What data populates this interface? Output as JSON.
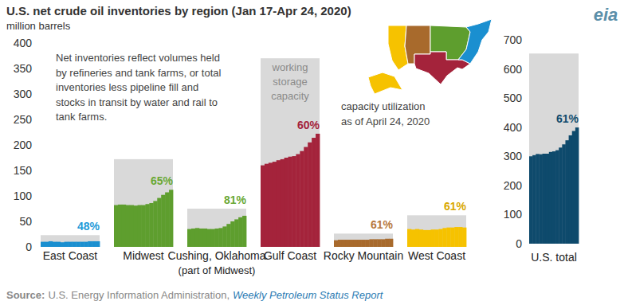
{
  "chart_data": [
    {
      "type": "bar",
      "title": "U.S. net crude oil inventories by region (Jan 17-Apr 24, 2020)",
      "y_label": "million barrels",
      "logo": "eia",
      "note_lines": [
        "Net inventories reflect volumes held",
        "by refineries and tank farms, or total",
        "inventories less pipeline fill and",
        "stocks in transit by water and rail to",
        "tank farms."
      ],
      "capacity_label_lines": [
        "working",
        "storage",
        "capacity"
      ],
      "utilization_note_lines": [
        "capacity utilization",
        "as of April 24, 2020"
      ],
      "source_prefix": "Source:",
      "source": "U.S. Energy Information Administration,",
      "source_report": "Weekly Petroleum Status Report",
      "categories": [
        "East Coast",
        "Midwest",
        "Cushing, Oklahoma",
        "Gulf Coast",
        "Rocky Mountain",
        "West Coast"
      ],
      "category_notes": [
        null,
        null,
        "(part of Midwest)",
        null,
        null,
        null
      ],
      "colors": [
        "#1a8fd0",
        "#5e9e2e",
        "#5e9e2e",
        "#a4233b",
        "#a86a2c",
        "#f6c200"
      ],
      "label_colors": [
        "#1f9ad8",
        "#69a833",
        "#69a833",
        "#a4233b",
        "#b8783a",
        "#d9a800"
      ],
      "values": [
        [
          10,
          10,
          11,
          10,
          10,
          9,
          10,
          10,
          10,
          10,
          10,
          10,
          11,
          11,
          11
        ],
        [
          82,
          83,
          83,
          82,
          82,
          81,
          82,
          82,
          84,
          86,
          90,
          96,
          102,
          107,
          112
        ],
        [
          35,
          36,
          37,
          36,
          36,
          35,
          35,
          36,
          37,
          40,
          45,
          50,
          54,
          58,
          61
        ],
        [
          160,
          163,
          165,
          167,
          170,
          172,
          175,
          177,
          178,
          182,
          188,
          196,
          205,
          214,
          222
        ],
        [
          13,
          14,
          14,
          14,
          14,
          14,
          14,
          14,
          14,
          15,
          15,
          15,
          15,
          16,
          16
        ],
        [
          35,
          34,
          35,
          34,
          33,
          33,
          34,
          34,
          35,
          37,
          38,
          38,
          39,
          39,
          38
        ]
      ],
      "capacity": [
        23,
        172,
        75,
        370,
        26,
        62
      ],
      "utilization": [
        48,
        65,
        81,
        60,
        61,
        61
      ],
      "utilization_labels": [
        "48%",
        "65%",
        "81%",
        "60%",
        "61%",
        "61%"
      ],
      "ylim": [
        0,
        400
      ],
      "yticks": [
        0,
        50,
        100,
        150,
        200,
        250,
        300,
        350,
        400
      ]
    },
    {
      "type": "bar",
      "categories": [
        "U.S. total"
      ],
      "colors": [
        "#0e4a6c"
      ],
      "label_colors": [
        "#0e4a6c"
      ],
      "values": [
        [
          300,
          304,
          308,
          307,
          309,
          309,
          315,
          317,
          321,
          330,
          341,
          355,
          372,
          387,
          399
        ]
      ],
      "capacity": [
        653
      ],
      "utilization": [
        61
      ],
      "utilization_labels": [
        "61%"
      ],
      "ylim": [
        0,
        700
      ],
      "yticks": [
        0,
        100,
        200,
        300,
        400,
        500,
        600,
        700
      ]
    }
  ]
}
